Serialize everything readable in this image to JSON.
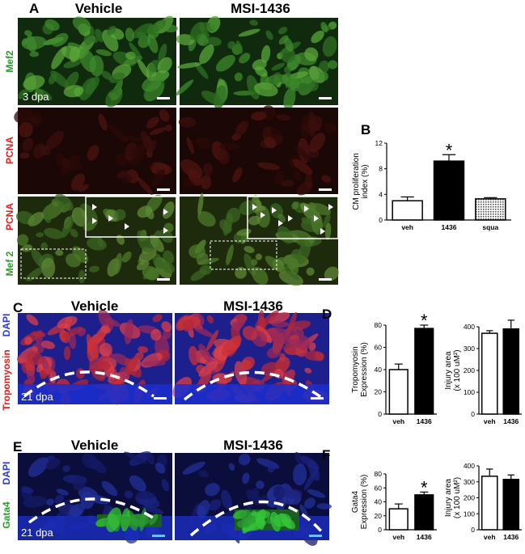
{
  "panels": {
    "a": {
      "label": "A",
      "columns": [
        "Vehicle",
        "MSI-1436"
      ],
      "row_labels": [
        "Mef2",
        "PCNA",
        "PCNA",
        "Mef 2"
      ],
      "annotation": "3 dpa"
    },
    "b": {
      "label": "B"
    },
    "c": {
      "label": "C",
      "columns": [
        "Vehicle",
        "MSI-1436"
      ],
      "row_labels": [
        "Tropomyosin",
        "DAPI"
      ],
      "annotation": "21 dpa"
    },
    "d": {
      "label": "D"
    },
    "e": {
      "label": "E",
      "columns": [
        "Vehicle",
        "MSI-1436"
      ],
      "row_labels": [
        "DAPI",
        "Gata4"
      ],
      "annotation": "21 dpa"
    },
    "f": {
      "label": "F"
    }
  },
  "chart_data": [
    {
      "type": "bar",
      "ylabel": [
        "CM proliferation",
        "index (%)"
      ],
      "categories": [
        "veh",
        "1436",
        "squa"
      ],
      "values": [
        3,
        9.2,
        3.3
      ],
      "errors": [
        0.6,
        1.0,
        0.2
      ],
      "colors": [
        "#ffffff",
        "#000000",
        "#bdbdbd"
      ],
      "ylim": [
        0,
        12
      ],
      "yticks": [
        0,
        4,
        8,
        12
      ],
      "annotation": "*"
    },
    {
      "type": "bar",
      "ylabel": [
        "Tropomyosin",
        "Expression (%)"
      ],
      "categories": [
        "veh",
        "1436"
      ],
      "values": [
        40,
        77
      ],
      "errors": [
        5,
        3
      ],
      "colors": [
        "#ffffff",
        "#000000"
      ],
      "ylim": [
        0,
        80
      ],
      "yticks": [
        0,
        20,
        40,
        60,
        80
      ],
      "annotation": "*"
    },
    {
      "type": "bar",
      "ylabel": [
        "Injury area",
        "(x 100 uM²)"
      ],
      "categories": [
        "veh",
        "1436"
      ],
      "values": [
        370,
        390
      ],
      "errors": [
        12,
        40
      ],
      "colors": [
        "#ffffff",
        "#000000"
      ],
      "ylim": [
        0,
        400
      ],
      "yticks": [
        0,
        100,
        200,
        300,
        400
      ]
    },
    {
      "type": "bar",
      "ylabel": [
        "Gata4",
        "Expression (%)"
      ],
      "categories": [
        "veh",
        "1436"
      ],
      "values": [
        30,
        50
      ],
      "errors": [
        7,
        4
      ],
      "colors": [
        "#ffffff",
        "#000000"
      ],
      "ylim": [
        0,
        80
      ],
      "yticks": [
        0,
        20,
        40,
        60,
        80
      ],
      "annotation": "*"
    },
    {
      "type": "bar",
      "ylabel": [
        "Injury area",
        "(x 100 uM²)"
      ],
      "categories": [
        "veh",
        "1436"
      ],
      "values": [
        335,
        315
      ],
      "errors": [
        45,
        28
      ],
      "colors": [
        "#ffffff",
        "#000000"
      ],
      "ylim": [
        0,
        400
      ],
      "yticks": [
        0,
        100,
        200,
        300,
        400
      ]
    }
  ]
}
